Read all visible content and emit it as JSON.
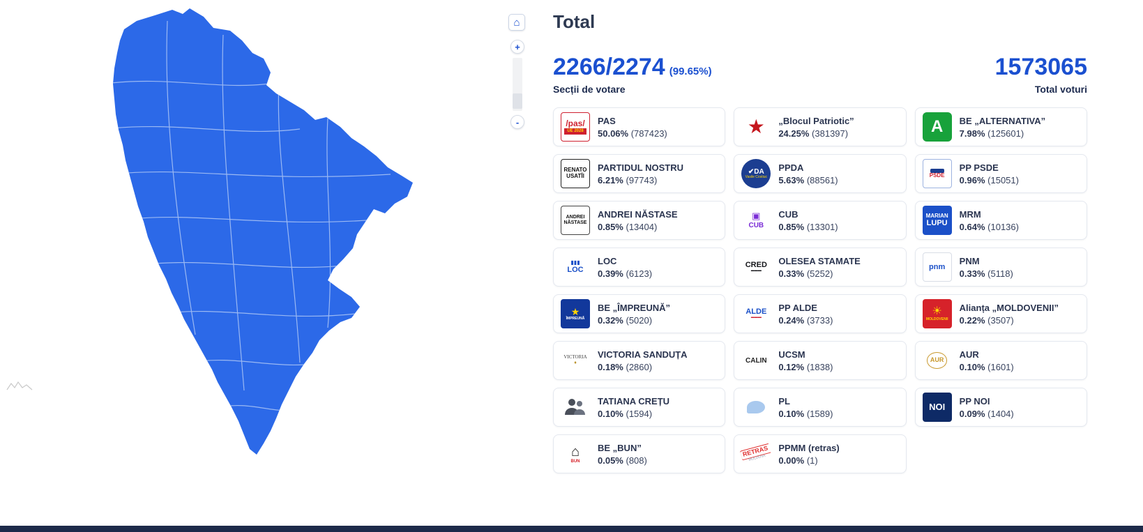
{
  "header": {
    "title": "Total"
  },
  "summary": {
    "stations_value": "2266/2274",
    "stations_pct": "(99.65%)",
    "stations_label": "Secții de votare",
    "total_votes": "1573065",
    "total_votes_label": "Total voturi"
  },
  "map_controls": {
    "home": "⌂",
    "zoom_in": "+",
    "zoom_out": "-"
  },
  "map": {
    "fill": "#2c69e8",
    "district_stroke": "#9bb9f3"
  },
  "footer": {
    "color": "#1d2a4a"
  },
  "parties": [
    {
      "name": "PAS",
      "pct": "50.06%",
      "votes": "(787423)",
      "logo": {
        "kind": "lines",
        "bg": "#ffffff",
        "border": "#cf2030",
        "lines": [
          {
            "t": "/pas/",
            "c": "#cf2030",
            "fs": 12,
            "b": 1
          },
          {
            "t": "UE 2028",
            "c": "#ffd400",
            "bg": "#cf2030",
            "fs": 6,
            "b": 1,
            "pad": "1px 4px"
          }
        ]
      }
    },
    {
      "name": "„Blocul Patriotic”",
      "pct": "24.25%",
      "votes": "(381397)",
      "logo": {
        "kind": "lines",
        "bg": "#ffffff",
        "lines": [
          {
            "t": "★",
            "c": "#c5161d",
            "fs": 28
          }
        ]
      }
    },
    {
      "name": "BE „ALTERNATIVA”",
      "pct": "7.98%",
      "votes": "(125601)",
      "logo": {
        "kind": "lines",
        "bg": "#18a23b",
        "rad": "6px",
        "lines": [
          {
            "t": "A",
            "c": "#ffffff",
            "fs": 24,
            "b": 1
          }
        ]
      }
    },
    {
      "name": "PARTIDUL NOSTRU",
      "pct": "6.21%",
      "votes": "(97743)",
      "logo": {
        "kind": "lines",
        "bg": "#ffffff",
        "border": "#222222",
        "lines": [
          {
            "t": "RENATO",
            "c": "#111111",
            "fs": 8,
            "b": 1
          },
          {
            "t": "USATÎI",
            "c": "#111111",
            "fs": 8,
            "b": 1
          }
        ]
      }
    },
    {
      "name": "PPDA",
      "pct": "5.63%",
      "votes": "(88561)",
      "logo": {
        "kind": "lines",
        "bg": "#1c3e91",
        "rad": "50%",
        "lines": [
          {
            "t": "✔DA",
            "c": "#ffffff",
            "fs": 10,
            "b": 1
          },
          {
            "t": "Vasile Costiuc",
            "c": "#ffd400",
            "fs": 5
          }
        ]
      }
    },
    {
      "name": "PP PSDE",
      "pct": "0.96%",
      "votes": "(15051)",
      "logo": {
        "kind": "lines",
        "bg": "#ffffff",
        "border": "#9db3e0",
        "lines": [
          {
            "t": "",
            "bg": "#1c3e91",
            "pad": "3px 10px",
            "rad": "2px"
          },
          {
            "t": "PSDE",
            "c": "#cf2030",
            "fs": 8,
            "b": 1
          }
        ]
      }
    },
    {
      "name": "ANDREI NĂSTASE",
      "pct": "0.85%",
      "votes": "(13404)",
      "logo": {
        "kind": "lines",
        "bg": "#ffffff",
        "border": "#444444",
        "lines": [
          {
            "t": "ANDREI",
            "c": "#111111",
            "fs": 7,
            "b": 1
          },
          {
            "t": "NĂSTASE",
            "c": "#111111",
            "fs": 7,
            "b": 1
          }
        ]
      }
    },
    {
      "name": "CUB",
      "pct": "0.85%",
      "votes": "(13301)",
      "logo": {
        "kind": "lines",
        "bg": "#ffffff",
        "lines": [
          {
            "t": "▣",
            "c": "#7a2bd6",
            "fs": 13
          },
          {
            "t": "CUB",
            "c": "#7a2bd6",
            "fs": 10,
            "b": 1
          }
        ]
      }
    },
    {
      "name": "MRM",
      "pct": "0.64%",
      "votes": "(10136)",
      "logo": {
        "kind": "lines",
        "bg": "#1b50c8",
        "lines": [
          {
            "t": "MARIAN",
            "c": "#ffffff",
            "fs": 8,
            "b": 1
          },
          {
            "t": "LUPU",
            "c": "#ffffff",
            "fs": 11,
            "b": 1
          }
        ]
      }
    },
    {
      "name": "LOC",
      "pct": "0.39%",
      "votes": "(6123)",
      "logo": {
        "kind": "lines",
        "bg": "#ffffff",
        "lines": [
          {
            "t": "▮▮▮",
            "c": "#1b50c8",
            "fs": 8
          },
          {
            "t": "LOC",
            "c": "#1b50c8",
            "fs": 11,
            "b": 1
          }
        ]
      }
    },
    {
      "name": "OLESEA STAMATE",
      "pct": "0.33%",
      "votes": "(5252)",
      "logo": {
        "kind": "lines",
        "bg": "#ffffff",
        "lines": [
          {
            "t": "CRED",
            "c": "#15161a",
            "fs": 11,
            "b": 1
          },
          {
            "t": "▬▬▬",
            "c": "#15161a",
            "fs": 5
          }
        ]
      }
    },
    {
      "name": "PNM",
      "pct": "0.33%",
      "votes": "(5118)",
      "logo": {
        "kind": "lines",
        "bg": "#ffffff",
        "border": "#d8dde6",
        "lines": [
          {
            "t": "pnm",
            "c": "#1b50c8",
            "fs": 11,
            "b": 1
          }
        ]
      }
    },
    {
      "name": "BE „ÎMPREUNĂ”",
      "pct": "0.32%",
      "votes": "(5020)",
      "logo": {
        "kind": "lines",
        "bg": "#12389b",
        "lines": [
          {
            "t": "★",
            "c": "#ffd400",
            "fs": 14
          },
          {
            "t": "ÎMPREUNĂ",
            "c": "#ffffff",
            "fs": 5,
            "b": 1
          }
        ]
      }
    },
    {
      "name": "PP ALDE",
      "pct": "0.24%",
      "votes": "(3733)",
      "logo": {
        "kind": "lines",
        "bg": "#ffffff",
        "lines": [
          {
            "t": "ALDE",
            "c": "#1b50c8",
            "fs": 11,
            "b": 1
          },
          {
            "t": "▬▬▬",
            "c": "#cf2030",
            "fs": 5
          }
        ]
      }
    },
    {
      "name": "Alianța „MOLDOVENII”",
      "pct": "0.22%",
      "votes": "(3507)",
      "logo": {
        "kind": "lines",
        "bg": "#d6222a",
        "lines": [
          {
            "t": "☀",
            "c": "#ffd400",
            "fs": 16
          },
          {
            "t": "MOLDOVENII",
            "c": "#ffd400",
            "fs": 5,
            "b": 1
          }
        ]
      }
    },
    {
      "name": "VICTORIA SANDUȚA",
      "pct": "0.18%",
      "votes": "(2860)",
      "logo": {
        "kind": "lines",
        "bg": "#ffffff",
        "lines": [
          {
            "t": "VICTORIA",
            "c": "#444444",
            "fs": 7,
            "serif": 1
          },
          {
            "t": "♦",
            "c": "#b99028",
            "fs": 7
          }
        ]
      }
    },
    {
      "name": "UCSM",
      "pct": "0.12%",
      "votes": "(1838)",
      "logo": {
        "kind": "lines",
        "bg": "#ffffff",
        "lines": [
          {
            "t": "CALIN",
            "c": "#222222",
            "fs": 10,
            "b": 1
          }
        ]
      }
    },
    {
      "name": "AUR",
      "pct": "0.10%",
      "votes": "(1601)",
      "logo": {
        "kind": "lines",
        "bg": "#ffffff",
        "lines": [
          {
            "t": "AUR",
            "c": "#c9992e",
            "fs": 9,
            "b": 1,
            "bd": "#c9992e",
            "rad": "50%",
            "pad": "6px 4px"
          }
        ]
      }
    },
    {
      "name": "TATIANA CREȚU",
      "pct": "0.10%",
      "votes": "(1594)",
      "logo": {
        "kind": "people"
      }
    },
    {
      "name": "PL",
      "pct": "0.10%",
      "votes": "(1589)",
      "logo": {
        "kind": "lines",
        "bg": "#ffffff",
        "lines": [
          {
            "t": "",
            "bg": "#a9c9ee",
            "pad": "9px 13px",
            "rad": "60% 60% 60% 15%"
          }
        ]
      }
    },
    {
      "name": "PP NOI",
      "pct": "0.09%",
      "votes": "(1404)",
      "logo": {
        "kind": "lines",
        "bg": "#0e2a66",
        "lines": [
          {
            "t": "NOI",
            "c": "#ffffff",
            "fs": 13,
            "b": 1
          }
        ]
      }
    },
    {
      "name": "BE „BUN”",
      "pct": "0.05%",
      "votes": "(808)",
      "logo": {
        "kind": "lines",
        "bg": "#ffffff",
        "lines": [
          {
            "t": "⌂",
            "c": "#1a1a1a",
            "fs": 20,
            "b": 1
          },
          {
            "t": "BUN",
            "c": "#d6222a",
            "fs": 6,
            "b": 1
          }
        ]
      }
    },
    {
      "name": "PPMM (retras)",
      "pct": "0.00%",
      "votes": "(1)",
      "logo": {
        "kind": "lines",
        "bg": "#ffffff",
        "rot": -15,
        "lines": [
          {
            "t": "RETRAS",
            "c": "#e03131",
            "fs": 9,
            "b": 1,
            "bd": "#e03131",
            "pad": "1px 3px"
          },
          {
            "t": "MOLDOVA",
            "c": "#9aa3b5",
            "fs": 5
          }
        ]
      }
    }
  ]
}
